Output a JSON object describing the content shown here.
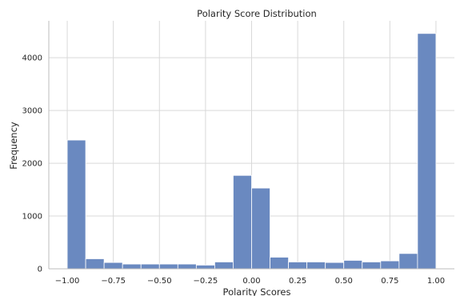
{
  "chart_data": {
    "type": "bar",
    "title": "Polarity Score Distribution",
    "xlabel": "Polarity Scores",
    "ylabel": "Frequency",
    "xlim": [
      -1.1,
      1.1
    ],
    "ylim": [
      0,
      4700
    ],
    "grid": true,
    "bar_color": "#6a89c0",
    "bin_edges": [
      -1.0,
      -0.9,
      -0.8,
      -0.7,
      -0.6,
      -0.5,
      -0.4,
      -0.3,
      -0.2,
      -0.1,
      0.0,
      0.1,
      0.2,
      0.3,
      0.4,
      0.5,
      0.6,
      0.7,
      0.8,
      0.9,
      1.0
    ],
    "values": [
      2440,
      190,
      120,
      90,
      90,
      90,
      90,
      70,
      130,
      1770,
      1530,
      220,
      130,
      130,
      120,
      160,
      130,
      150,
      290,
      4460
    ],
    "x_ticks": [
      {
        "value": -1.0,
        "label": "−1.00"
      },
      {
        "value": -0.75,
        "label": "−0.75"
      },
      {
        "value": -0.5,
        "label": "−0.50"
      },
      {
        "value": -0.25,
        "label": "−0.25"
      },
      {
        "value": 0.0,
        "label": "0.00"
      },
      {
        "value": 0.25,
        "label": "0.25"
      },
      {
        "value": 0.5,
        "label": "0.50"
      },
      {
        "value": 0.75,
        "label": "0.75"
      },
      {
        "value": 1.0,
        "label": "1.00"
      }
    ],
    "y_ticks": [
      {
        "value": 0,
        "label": "0"
      },
      {
        "value": 1000,
        "label": "1000"
      },
      {
        "value": 2000,
        "label": "2000"
      },
      {
        "value": 3000,
        "label": "3000"
      },
      {
        "value": 4000,
        "label": "4000"
      }
    ]
  }
}
